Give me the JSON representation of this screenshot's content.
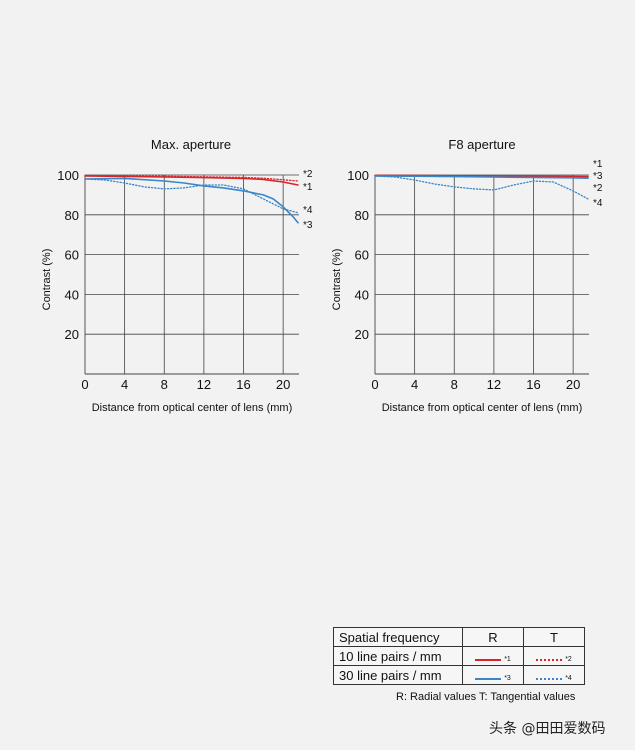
{
  "chart_data": [
    {
      "type": "line",
      "title": "Max. aperture",
      "xlabel": "Distance from optical center of lens (mm)",
      "ylabel": "Contrast (%)",
      "xlim": [
        0,
        21.6
      ],
      "ylim": [
        0,
        100
      ],
      "xticks": [
        0,
        4,
        8,
        12,
        16,
        20
      ],
      "xtick_labels": [
        "0",
        "4",
        "8",
        "12",
        "16",
        "20"
      ],
      "yticks": [
        20,
        40,
        60,
        80,
        100
      ],
      "ytick_labels": [
        "20",
        "40",
        "60",
        "80",
        "100"
      ],
      "grid": true,
      "series": [
        {
          "name": "*1",
          "style": "solid",
          "color": "#d6262b",
          "x": [
            0,
            4,
            8,
            12,
            16,
            18,
            20,
            21.5
          ],
          "y": [
            99.5,
            99.3,
            99,
            98.7,
            98.3,
            97.8,
            96.5,
            95
          ]
        },
        {
          "name": "*2",
          "style": "dotted",
          "color": "#d6262b",
          "x": [
            0,
            4,
            8,
            12,
            16,
            18,
            20,
            21.5
          ],
          "y": [
            99.8,
            99.6,
            99.4,
            99.1,
            98.8,
            98.4,
            97.6,
            97
          ]
        },
        {
          "name": "*3",
          "style": "solid",
          "color": "#3a86c8",
          "x": [
            0,
            4,
            8,
            10,
            12,
            14,
            16,
            18,
            19,
            20,
            21,
            21.5
          ],
          "y": [
            98,
            98.3,
            97,
            96,
            94.5,
            93.5,
            92,
            90,
            88,
            84,
            79,
            76
          ]
        },
        {
          "name": "*4",
          "style": "dotted",
          "color": "#3a86c8",
          "x": [
            0,
            2,
            4,
            6,
            8,
            10,
            12,
            14,
            16,
            18,
            20,
            21.5
          ],
          "y": [
            98,
            97.5,
            96,
            94,
            93,
            93.5,
            95,
            95,
            93,
            88,
            83,
            81
          ]
        }
      ]
    },
    {
      "type": "line",
      "title": "F8 aperture",
      "xlabel": "Distance from optical center of lens (mm)",
      "ylabel": "Contrast (%)",
      "xlim": [
        0,
        21.6
      ],
      "ylim": [
        0,
        100
      ],
      "xticks": [
        0,
        4,
        8,
        12,
        16,
        20
      ],
      "xtick_labels": [
        "0",
        "4",
        "8",
        "12",
        "16",
        "20"
      ],
      "yticks": [
        20,
        40,
        60,
        80,
        100
      ],
      "ytick_labels": [
        "20",
        "40",
        "60",
        "80",
        "100"
      ],
      "grid": true,
      "series": [
        {
          "name": "*1",
          "style": "solid",
          "color": "#d6262b",
          "x": [
            0,
            4,
            8,
            12,
            16,
            20,
            21.5
          ],
          "y": [
            99.8,
            99.7,
            99.6,
            99.5,
            99.4,
            99.3,
            99.2
          ]
        },
        {
          "name": "*2",
          "style": "dotted",
          "color": "#d6262b",
          "x": [
            0,
            4,
            8,
            12,
            16,
            20,
            21.5
          ],
          "y": [
            99.6,
            99.5,
            99.3,
            99.1,
            99,
            98.9,
            98.8
          ]
        },
        {
          "name": "*3",
          "style": "solid",
          "color": "#3a86c8",
          "x": [
            0,
            4,
            8,
            12,
            16,
            20,
            21.5
          ],
          "y": [
            99.5,
            99.4,
            99.2,
            99,
            98.8,
            98.6,
            98.4
          ]
        },
        {
          "name": "*4",
          "style": "dotted",
          "color": "#3a86c8",
          "x": [
            0,
            2,
            4,
            6,
            8,
            10,
            12,
            14,
            16,
            18,
            20,
            21.5
          ],
          "y": [
            99.5,
            99,
            97.5,
            95.5,
            94,
            93,
            92.5,
            95,
            97,
            96.5,
            92,
            88
          ]
        }
      ]
    }
  ],
  "legend": {
    "header": {
      "label": "Spatial frequency",
      "r": "R",
      "t": "T"
    },
    "rows": [
      {
        "label": "10 line pairs / mm",
        "r_tag": "*1",
        "t_tag": "*2",
        "color": "#d6262b"
      },
      {
        "label": "30 line pairs / mm",
        "r_tag": "*3",
        "t_tag": "*4",
        "color": "#3a86c8"
      }
    ],
    "footnote": "R: Radial values  T: Tangential values"
  },
  "watermark": "头条 @田田爱数码"
}
